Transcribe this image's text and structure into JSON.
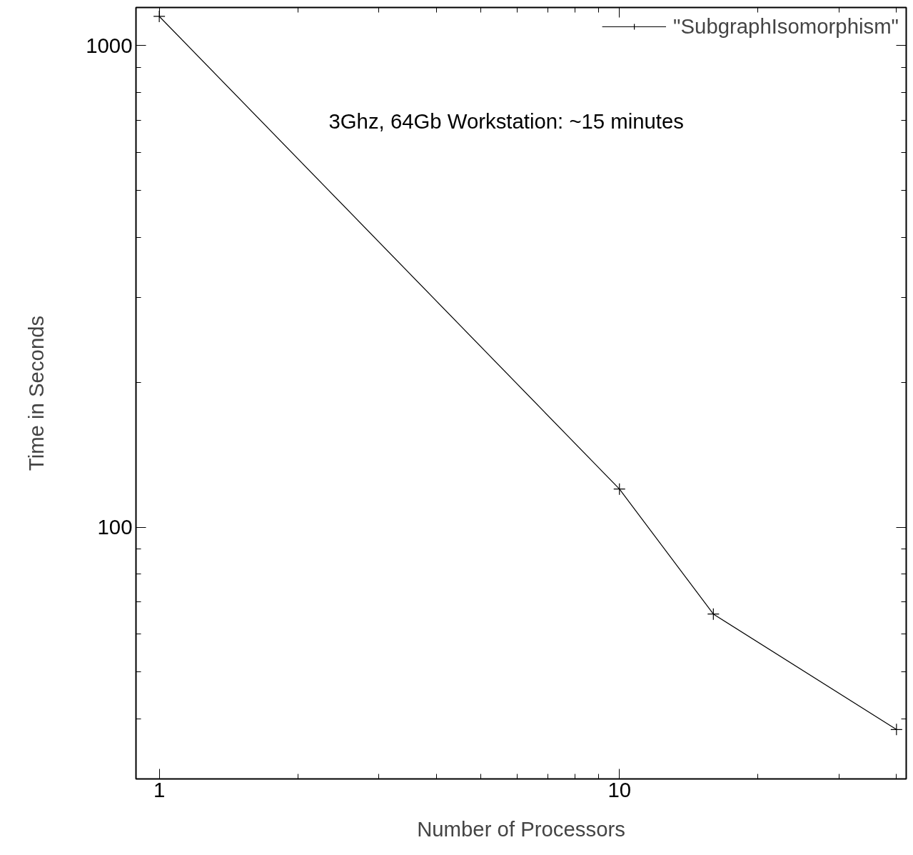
{
  "chart_data": {
    "type": "line",
    "xlabel": "Number of Processors",
    "ylabel": "Time in Seconds",
    "annotations": [
      "3Ghz, 64Gb Workstation: ~15 minutes"
    ],
    "x": [
      1,
      10,
      16,
      40
    ],
    "series": [
      {
        "name": "\"SubgraphIsomorphism\"",
        "color": "#000000",
        "values": [
          1150,
          120,
          66,
          38
        ]
      }
    ],
    "log": "xy",
    "xlim": [
      0.89,
      42
    ],
    "ylim": [
      30,
      1200
    ],
    "xticks": [
      1,
      {
        "value": 2,
        "label": null
      },
      {
        "value": 3,
        "label": null
      },
      {
        "value": 4,
        "label": null
      },
      {
        "value": 5,
        "label": null
      },
      {
        "value": 6,
        "label": null
      },
      {
        "value": 7,
        "label": null
      },
      {
        "value": 8,
        "label": null
      },
      {
        "value": 9,
        "label": null
      },
      10,
      {
        "value": 20,
        "label": null
      },
      {
        "value": 30,
        "label": null
      },
      {
        "value": 40,
        "label": null
      }
    ],
    "yticks": [
      {
        "value": 30,
        "label": null
      },
      {
        "value": 40,
        "label": null
      },
      {
        "value": 50,
        "label": null
      },
      {
        "value": 60,
        "label": null
      },
      {
        "value": 70,
        "label": null
      },
      {
        "value": 80,
        "label": null
      },
      {
        "value": 90,
        "label": null
      },
      100,
      {
        "value": 200,
        "label": null
      },
      {
        "value": 300,
        "label": null
      },
      {
        "value": 400,
        "label": null
      },
      {
        "value": 500,
        "label": null
      },
      {
        "value": 600,
        "label": null
      },
      {
        "value": 700,
        "label": null
      },
      {
        "value": 800,
        "label": null
      },
      {
        "value": 900,
        "label": null
      },
      1000
    ],
    "marker": "cross",
    "line_style": "solid",
    "legend": "top right",
    "grid": false
  }
}
